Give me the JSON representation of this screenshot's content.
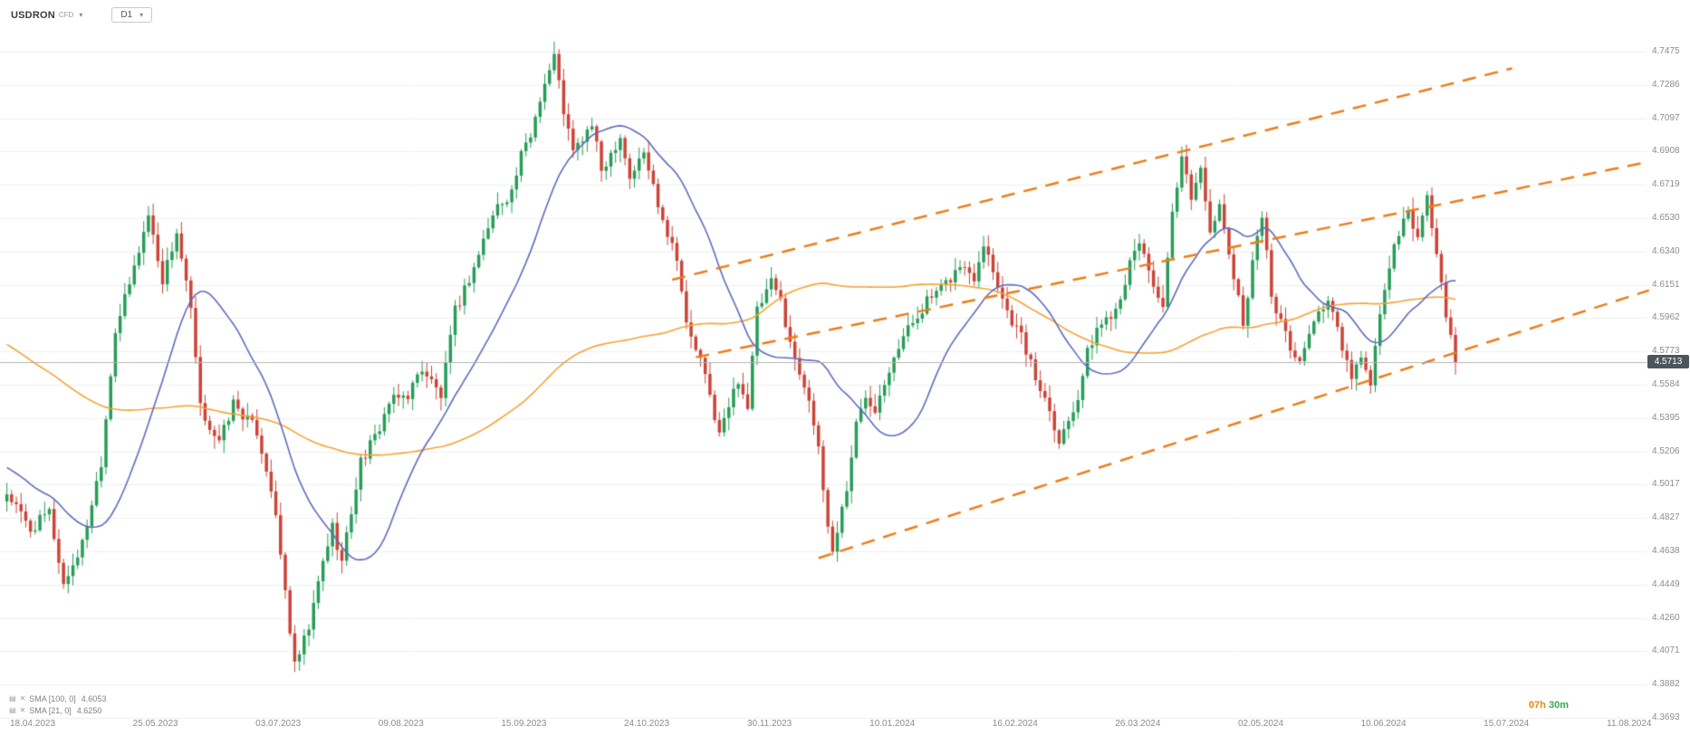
{
  "header": {
    "symbol": "USDRON",
    "instrument_type": "CFD",
    "timeframe": "D1"
  },
  "icons": {
    "caret_down": "▾",
    "indicator": "▤",
    "close": "✕"
  },
  "indicators": [
    {
      "label": "SMA [100, 0]",
      "value": "4.6053"
    },
    {
      "label": "SMA [21, 0]",
      "value": "4.6250"
    }
  ],
  "countdown": {
    "hours": "07h",
    "minutes": "30m",
    "hours_color": "#e8890c",
    "minutes_color": "#34a853"
  },
  "price_axis": {
    "labels": [
      "4.7475",
      "4.7286",
      "4.7097",
      "4.6908",
      "4.6719",
      "4.6530",
      "4.6340",
      "4.6151",
      "4.5962",
      "4.5773",
      "4.5584",
      "4.5395",
      "4.5206",
      "4.5017",
      "4.4827",
      "4.4638",
      "4.4449",
      "4.4260",
      "4.4071",
      "4.3882",
      "4.3693"
    ],
    "max": 4.7475,
    "min": 4.3693,
    "current": "4.5713",
    "current_value": 4.5713,
    "badge_bg": "#4d555b",
    "text_color": "#8c8c8c"
  },
  "date_axis": {
    "labels": [
      "18.04.2023",
      "25.05.2023",
      "03.07.2023",
      "09.08.2023",
      "15.09.2023",
      "24.10.2023",
      "30.11.2023",
      "10.01.2024",
      "16.02.2024",
      "26.03.2024",
      "02.05.2024",
      "10.06.2024",
      "15.07.2024",
      "11.08.2024"
    ]
  },
  "chart_data": {
    "type": "candlestick",
    "title": "USDRON CFD D1",
    "symbol": "USDRON",
    "timeframe": "D1",
    "candle_count": 308,
    "last_close": 4.5713,
    "noise": 0.007,
    "ylim": [
      4.3693,
      4.7475
    ],
    "close_anchors": [
      [
        0,
        4.497
      ],
      [
        5,
        4.476
      ],
      [
        9,
        4.486
      ],
      [
        12,
        4.445
      ],
      [
        16,
        4.468
      ],
      [
        20,
        4.515
      ],
      [
        23,
        4.59
      ],
      [
        26,
        4.615
      ],
      [
        30,
        4.655
      ],
      [
        33,
        4.618
      ],
      [
        36,
        4.645
      ],
      [
        39,
        4.6
      ],
      [
        41,
        4.545
      ],
      [
        45,
        4.525
      ],
      [
        48,
        4.548
      ],
      [
        53,
        4.532
      ],
      [
        56,
        4.5
      ],
      [
        58,
        4.462
      ],
      [
        61,
        4.398
      ],
      [
        64,
        4.42
      ],
      [
        67,
        4.458
      ],
      [
        69,
        4.478
      ],
      [
        71,
        4.458
      ],
      [
        75,
        4.515
      ],
      [
        78,
        4.528
      ],
      [
        81,
        4.548
      ],
      [
        85,
        4.553
      ],
      [
        88,
        4.568
      ],
      [
        92,
        4.552
      ],
      [
        95,
        4.6
      ],
      [
        99,
        4.625
      ],
      [
        102,
        4.648
      ],
      [
        104,
        4.66
      ],
      [
        107,
        4.668
      ],
      [
        109,
        4.688
      ],
      [
        111,
        4.7
      ],
      [
        113,
        4.722
      ],
      [
        116,
        4.745
      ],
      [
        118,
        4.714
      ],
      [
        120,
        4.69
      ],
      [
        124,
        4.706
      ],
      [
        126,
        4.68
      ],
      [
        130,
        4.7
      ],
      [
        132,
        4.676
      ],
      [
        135,
        4.69
      ],
      [
        138,
        4.662
      ],
      [
        140,
        4.645
      ],
      [
        142,
        4.632
      ],
      [
        144,
        4.592
      ],
      [
        147,
        4.572
      ],
      [
        149,
        4.552
      ],
      [
        151,
        4.53
      ],
      [
        155,
        4.562
      ],
      [
        157,
        4.546
      ],
      [
        159,
        4.6
      ],
      [
        162,
        4.616
      ],
      [
        164,
        4.606
      ],
      [
        167,
        4.572
      ],
      [
        170,
        4.552
      ],
      [
        172,
        4.52
      ],
      [
        174,
        4.478
      ],
      [
        175,
        4.464
      ],
      [
        178,
        4.5
      ],
      [
        180,
        4.536
      ],
      [
        182,
        4.552
      ],
      [
        184,
        4.546
      ],
      [
        188,
        4.576
      ],
      [
        191,
        4.59
      ],
      [
        195,
        4.606
      ],
      [
        198,
        4.612
      ],
      [
        202,
        4.626
      ],
      [
        205,
        4.62
      ],
      [
        207,
        4.64
      ],
      [
        210,
        4.616
      ],
      [
        212,
        4.6
      ],
      [
        215,
        4.586
      ],
      [
        218,
        4.562
      ],
      [
        221,
        4.546
      ],
      [
        223,
        4.526
      ],
      [
        227,
        4.552
      ],
      [
        229,
        4.576
      ],
      [
        231,
        4.59
      ],
      [
        235,
        4.602
      ],
      [
        238,
        4.626
      ],
      [
        240,
        4.64
      ],
      [
        243,
        4.616
      ],
      [
        245,
        4.6
      ],
      [
        247,
        4.655
      ],
      [
        249,
        4.685
      ],
      [
        251,
        4.666
      ],
      [
        253,
        4.68
      ],
      [
        255,
        4.648
      ],
      [
        257,
        4.658
      ],
      [
        260,
        4.62
      ],
      [
        262,
        4.592
      ],
      [
        264,
        4.63
      ],
      [
        266,
        4.655
      ],
      [
        268,
        4.61
      ],
      [
        271,
        4.586
      ],
      [
        274,
        4.57
      ],
      [
        277,
        4.596
      ],
      [
        280,
        4.606
      ],
      [
        283,
        4.58
      ],
      [
        285,
        4.56
      ],
      [
        287,
        4.576
      ],
      [
        289,
        4.556
      ],
      [
        291,
        4.6
      ],
      [
        294,
        4.636
      ],
      [
        297,
        4.656
      ],
      [
        299,
        4.642
      ],
      [
        301,
        4.665
      ],
      [
        303,
        4.632
      ],
      [
        305,
        4.6
      ],
      [
        306,
        4.586
      ],
      [
        307,
        4.5713
      ]
    ],
    "trend_lines": [
      {
        "from": [
          141,
          4.618
        ],
        "to": [
          319,
          4.738
        ]
      },
      {
        "from": [
          146,
          4.574
        ],
        "to": [
          348,
          4.685
        ]
      },
      {
        "from": [
          172,
          4.46
        ],
        "to": [
          348,
          4.612
        ]
      }
    ],
    "sma": [
      {
        "period": 100,
        "seed": 4.67,
        "color": "#f6a335",
        "value": 4.6053
      },
      {
        "period": 21,
        "seed": 4.53,
        "color": "#5f6cbf",
        "value": 4.625
      }
    ],
    "colors": {
      "up": "#279d58",
      "down": "#cc4437",
      "trend": "#ee7d18",
      "grid": "#f0f0f0",
      "current_line": "#b3b3b3"
    }
  }
}
